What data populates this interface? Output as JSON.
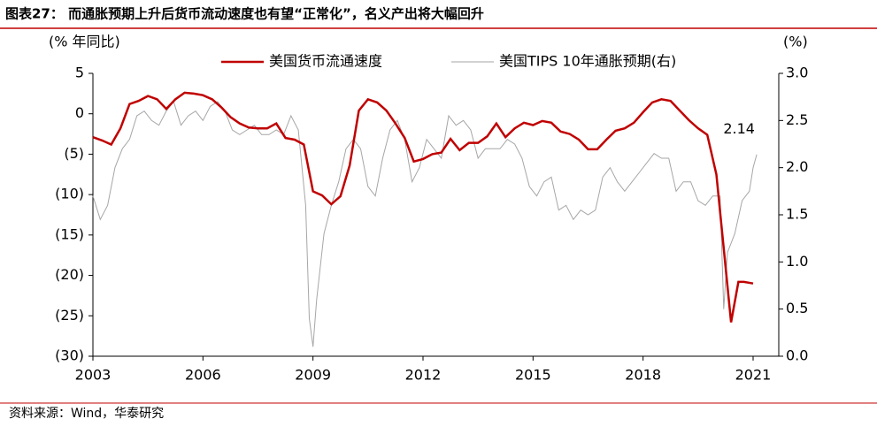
{
  "chart_data": {
    "type": "line",
    "title": "图表27：  而通胀预期上升后货币流动速度也有望“正常化”，名义产出将大幅回升",
    "ylabel": "(% 年同比)",
    "y2label": "(%)",
    "source": "资料来源：Wind，华泰研究",
    "annotation": "2.14",
    "xlim": [
      2003,
      2021.7
    ],
    "xticks": [
      2003,
      2006,
      2009,
      2012,
      2015,
      2018,
      2021
    ],
    "ylim": [
      -30,
      5
    ],
    "yticks": [
      {
        "value": -30,
        "label": "(30)"
      },
      {
        "value": -25,
        "label": "(25)"
      },
      {
        "value": -20,
        "label": "(20)"
      },
      {
        "value": -15,
        "label": "(15)"
      },
      {
        "value": -10,
        "label": "(10)"
      },
      {
        "value": -5,
        "label": "(5)"
      },
      0,
      5
    ],
    "y2lim": [
      0,
      3
    ],
    "y2ticks": [
      {
        "value": 0,
        "label": "0.0"
      },
      0.5,
      {
        "value": 1,
        "label": "1.0"
      },
      1.5,
      {
        "value": 2,
        "label": "2.0"
      },
      2.5,
      {
        "value": 3,
        "label": "3.0"
      }
    ],
    "legend": "top",
    "series": [
      {
        "name": "美国货币流通速度",
        "color": "#c00000",
        "axis": "y",
        "x": [
          2003,
          2003.25,
          2003.5,
          2003.75,
          2004,
          2004.25,
          2004.5,
          2004.75,
          2005,
          2005.25,
          2005.5,
          2005.75,
          2006,
          2006.25,
          2006.5,
          2006.75,
          2007,
          2007.25,
          2007.5,
          2007.75,
          2008,
          2008.25,
          2008.5,
          2008.75,
          2009,
          2009.25,
          2009.5,
          2009.75,
          2010,
          2010.25,
          2010.5,
          2010.75,
          2011,
          2011.25,
          2011.5,
          2011.75,
          2012,
          2012.25,
          2012.5,
          2012.75,
          2013,
          2013.25,
          2013.5,
          2013.75,
          2014,
          2014.25,
          2014.5,
          2014.75,
          2015,
          2015.25,
          2015.5,
          2015.75,
          2016,
          2016.25,
          2016.5,
          2016.75,
          2017,
          2017.25,
          2017.5,
          2017.75,
          2018,
          2018.25,
          2018.5,
          2018.75,
          2019,
          2019.25,
          2019.5,
          2019.75,
          2020,
          2020.4,
          2020.6,
          2020.75,
          2021
        ],
        "values": [
          -2.9,
          -3.3,
          -3.8,
          -1.8,
          1.2,
          1.6,
          2.2,
          1.8,
          0.6,
          1.8,
          2.6,
          2.5,
          2.3,
          1.8,
          0.8,
          -0.4,
          -1.2,
          -1.7,
          -1.8,
          -1.8,
          -1.2,
          -3.0,
          -3.2,
          -3.8,
          -9.6,
          -10.1,
          -11.2,
          -10.2,
          -6.4,
          0.4,
          1.8,
          1.4,
          0.4,
          -1.2,
          -3.0,
          -5.9,
          -5.6,
          -5.0,
          -4.8,
          -3.1,
          -4.5,
          -3.6,
          -3.6,
          -2.8,
          -1.2,
          -2.9,
          -1.8,
          -1.1,
          -1.4,
          -0.9,
          -1.1,
          -2.2,
          -2.5,
          -3.2,
          -4.4,
          -4.4,
          -3.2,
          -2.1,
          -1.8,
          -1.1,
          0.2,
          1.4,
          1.8,
          1.6,
          0.4,
          -0.8,
          -1.8,
          -2.6,
          -7.5,
          -25.8,
          -20.8,
          -20.8,
          -21.0
        ]
      },
      {
        "name": "美国TIPS 10年通胀预期(右)",
        "color": "#a6a6a6",
        "axis": "y2",
        "x": [
          2003,
          2003.2,
          2003.4,
          2003.6,
          2003.8,
          2004,
          2004.2,
          2004.4,
          2004.6,
          2004.8,
          2005,
          2005.2,
          2005.4,
          2005.6,
          2005.8,
          2006,
          2006.2,
          2006.4,
          2006.6,
          2006.8,
          2007,
          2007.2,
          2007.4,
          2007.6,
          2007.8,
          2008,
          2008.2,
          2008.4,
          2008.6,
          2008.8,
          2008.9,
          2009,
          2009.1,
          2009.3,
          2009.5,
          2009.7,
          2009.9,
          2010.1,
          2010.3,
          2010.5,
          2010.7,
          2010.9,
          2011.1,
          2011.3,
          2011.5,
          2011.7,
          2011.9,
          2012.1,
          2012.3,
          2012.5,
          2012.7,
          2012.9,
          2013.1,
          2013.3,
          2013.5,
          2013.7,
          2013.9,
          2014.1,
          2014.3,
          2014.5,
          2014.7,
          2014.9,
          2015.1,
          2015.3,
          2015.5,
          2015.7,
          2015.9,
          2016.1,
          2016.3,
          2016.5,
          2016.7,
          2016.9,
          2017.1,
          2017.3,
          2017.5,
          2017.7,
          2017.9,
          2018.1,
          2018.3,
          2018.5,
          2018.7,
          2018.9,
          2019.1,
          2019.3,
          2019.5,
          2019.7,
          2019.9,
          2020.1,
          2020.2,
          2020.3,
          2020.5,
          2020.7,
          2020.9,
          2021,
          2021.1
        ],
        "values": [
          1.7,
          1.45,
          1.6,
          2.0,
          2.2,
          2.3,
          2.55,
          2.6,
          2.5,
          2.45,
          2.6,
          2.7,
          2.45,
          2.55,
          2.6,
          2.5,
          2.65,
          2.7,
          2.6,
          2.4,
          2.35,
          2.4,
          2.45,
          2.35,
          2.35,
          2.4,
          2.35,
          2.55,
          2.4,
          1.6,
          0.4,
          0.1,
          0.6,
          1.3,
          1.6,
          1.85,
          2.2,
          2.3,
          2.2,
          1.8,
          1.7,
          2.1,
          2.4,
          2.5,
          2.3,
          1.85,
          2.0,
          2.3,
          2.2,
          2.1,
          2.55,
          2.45,
          2.5,
          2.4,
          2.1,
          2.2,
          2.2,
          2.2,
          2.3,
          2.25,
          2.1,
          1.8,
          1.7,
          1.85,
          1.9,
          1.55,
          1.6,
          1.45,
          1.55,
          1.5,
          1.55,
          1.9,
          2.0,
          1.85,
          1.75,
          1.85,
          1.95,
          2.05,
          2.15,
          2.1,
          2.1,
          1.75,
          1.85,
          1.85,
          1.65,
          1.6,
          1.7,
          1.7,
          0.5,
          1.1,
          1.3,
          1.65,
          1.75,
          2.0,
          2.14
        ]
      }
    ]
  }
}
